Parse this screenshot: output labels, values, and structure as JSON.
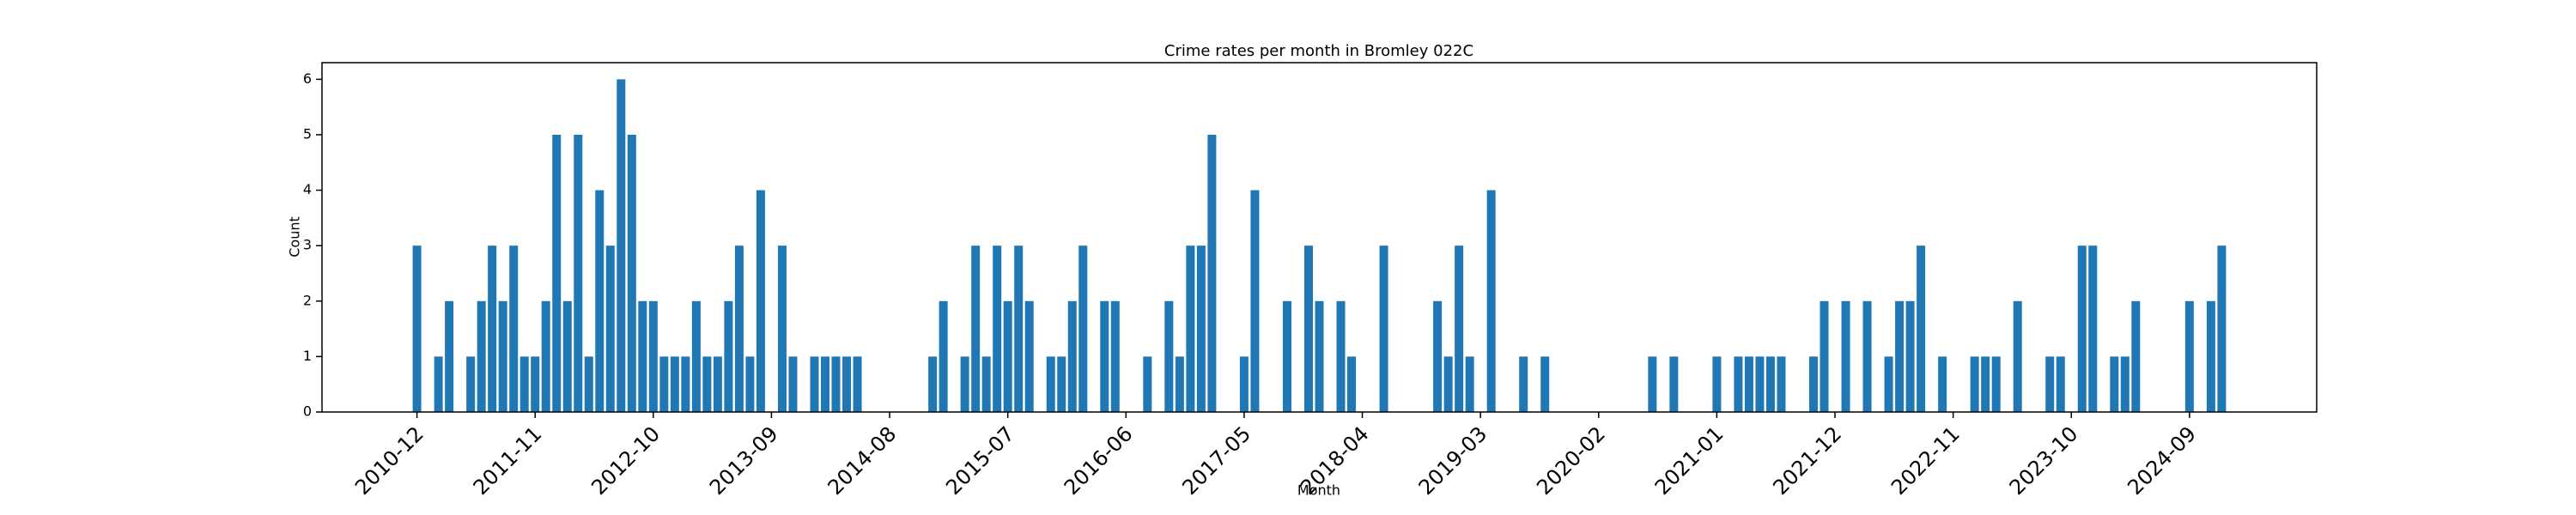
{
  "chart_data": {
    "type": "bar",
    "title": "Crime rates per month in Bromley 022C",
    "x_label": "Month",
    "y_label": "Count",
    "color": "#1f77b4",
    "categories": [
      "2010-12",
      null,
      null,
      null,
      null,
      null,
      null,
      null,
      null,
      null,
      null,
      "2011-11",
      null,
      null,
      null,
      null,
      null,
      null,
      null,
      null,
      null,
      null,
      "2012-10",
      null,
      null,
      null,
      null,
      null,
      null,
      null,
      null,
      null,
      null,
      "2013-09",
      null,
      null,
      null,
      null,
      null,
      null,
      null,
      null,
      null,
      null,
      "2014-08",
      null,
      null,
      null,
      null,
      null,
      null,
      null,
      null,
      null,
      null,
      "2015-07",
      null,
      null,
      null,
      null,
      null,
      null,
      null,
      null,
      null,
      null,
      "2016-06",
      null,
      null,
      null,
      null,
      null,
      null,
      null,
      null,
      null,
      null,
      "2017-05",
      null,
      null,
      null,
      null,
      null,
      null,
      null,
      null,
      null,
      null,
      "2018-04",
      null,
      null,
      null,
      null,
      null,
      null,
      null,
      null,
      null,
      null,
      "2019-03",
      null,
      null,
      null,
      null,
      null,
      null,
      null,
      null,
      null,
      null,
      "2020-02",
      null,
      null,
      null,
      null,
      null,
      null,
      null,
      null,
      null,
      null,
      "2021-01",
      null,
      null,
      null,
      null,
      null,
      null,
      null,
      null,
      null,
      null,
      "2021-12",
      null,
      null,
      null,
      null,
      null,
      null,
      null,
      null,
      null,
      null,
      "2022-11",
      null,
      null,
      null,
      null,
      null,
      null,
      null,
      null,
      null,
      null,
      "2023-10",
      null,
      null,
      null,
      null,
      null,
      null,
      null,
      null,
      null,
      null,
      "2024-09",
      null,
      null,
      null
    ],
    "values": [
      3,
      0,
      1,
      2,
      0,
      1,
      2,
      3,
      2,
      3,
      1,
      1,
      2,
      5,
      2,
      5,
      1,
      4,
      3,
      6,
      5,
      2,
      2,
      1,
      1,
      1,
      2,
      1,
      1,
      2,
      3,
      1,
      4,
      0,
      3,
      1,
      0,
      1,
      1,
      1,
      1,
      1,
      0,
      0,
      0,
      0,
      0,
      0,
      1,
      2,
      0,
      1,
      3,
      1,
      3,
      2,
      3,
      2,
      0,
      1,
      1,
      2,
      3,
      0,
      2,
      2,
      0,
      0,
      1,
      0,
      2,
      1,
      3,
      3,
      5,
      0,
      0,
      1,
      4,
      0,
      0,
      2,
      0,
      3,
      2,
      0,
      2,
      1,
      0,
      0,
      3,
      0,
      0,
      0,
      0,
      2,
      1,
      3,
      1,
      0,
      4,
      0,
      0,
      1,
      0,
      1,
      0,
      0,
      0,
      0,
      0,
      0,
      0,
      0,
      0,
      1,
      0,
      1,
      0,
      0,
      0,
      1,
      0,
      1,
      1,
      1,
      1,
      1,
      0,
      0,
      1,
      2,
      0,
      2,
      0,
      2,
      0,
      1,
      2,
      2,
      3,
      0,
      1,
      0,
      0,
      1,
      1,
      1,
      0,
      2,
      0,
      0,
      1,
      1,
      0,
      3,
      3,
      0,
      1,
      1,
      2,
      0,
      0,
      0,
      0,
      2,
      0,
      2,
      3
    ],
    "ylim": [
      0,
      6.3
    ],
    "yticks": [
      0,
      1,
      2,
      3,
      4,
      5,
      6
    ]
  }
}
